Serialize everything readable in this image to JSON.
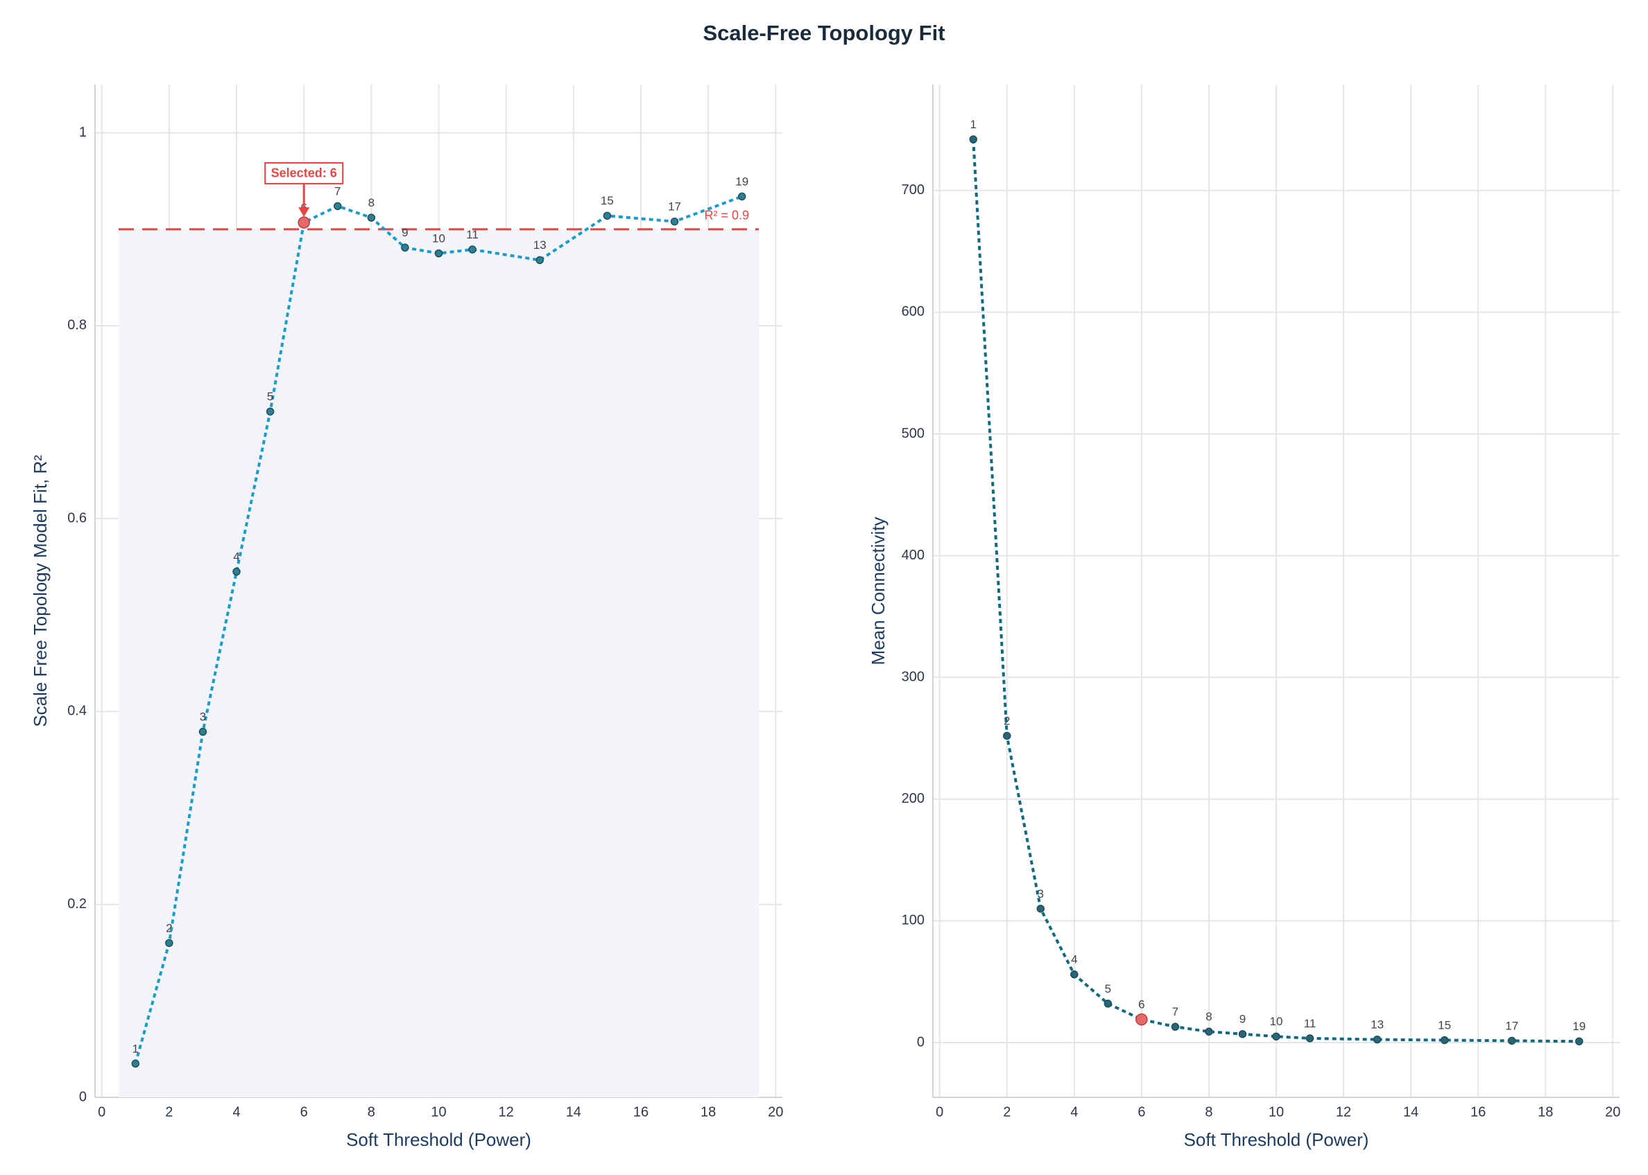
{
  "title": "Scale-Free Topology Fit",
  "chart_data": [
    {
      "type": "line",
      "xlabel": "Soft Threshold (Power)",
      "ylabel": "Scale Free Topology Model Fit, R²",
      "x": [
        1,
        2,
        3,
        4,
        5,
        6,
        7,
        8,
        9,
        10,
        11,
        13,
        15,
        17,
        19
      ],
      "values": [
        0.035,
        0.16,
        0.379,
        0.545,
        0.711,
        0.907,
        0.924,
        0.912,
        0.881,
        0.875,
        0.879,
        0.868,
        0.914,
        0.908,
        0.934
      ],
      "color": "#1a9bc9",
      "marker_color": "#2f7f93",
      "xlim": [
        -0.2,
        20.2
      ],
      "ylim": [
        0,
        1.05
      ],
      "xticks": [
        0,
        2,
        4,
        6,
        8,
        10,
        12,
        14,
        16,
        18,
        20
      ],
      "yticks": [
        0,
        0.2,
        0.4,
        0.6,
        0.8,
        1
      ],
      "threshold": {
        "value": 0.9,
        "label": "R² = 0.9"
      },
      "selected": {
        "value": 6,
        "label": "Selected: 6"
      },
      "grid": true
    },
    {
      "type": "line",
      "xlabel": "Soft Threshold (Power)",
      "ylabel": "Mean Connectivity",
      "x": [
        1,
        2,
        3,
        4,
        5,
        6,
        7,
        8,
        9,
        10,
        11,
        13,
        15,
        17,
        19
      ],
      "values": [
        742,
        252,
        110,
        56,
        32,
        19,
        13,
        9,
        7,
        5,
        3.5,
        2.5,
        2,
        1.5,
        1
      ],
      "color": "#0e6a80",
      "marker_color": "#2a6577",
      "xlim": [
        -0.2,
        20.2
      ],
      "ylim": [
        -45,
        787
      ],
      "xticks": [
        0,
        2,
        4,
        6,
        8,
        10,
        12,
        14,
        16,
        18,
        20
      ],
      "yticks": [
        0,
        100,
        200,
        300,
        400,
        500,
        600,
        700
      ],
      "selected": {
        "value": 6
      },
      "grid": true
    }
  ]
}
